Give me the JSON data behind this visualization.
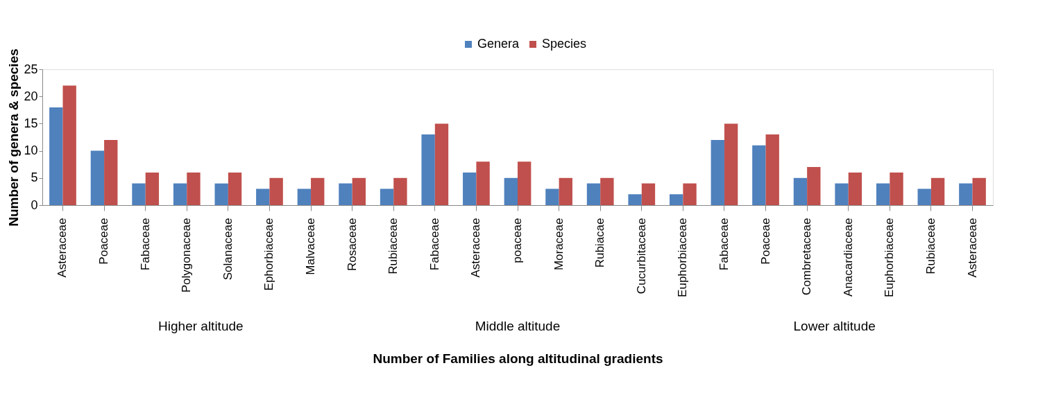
{
  "chart_data": {
    "type": "bar",
    "categories": [
      "Asteraceae",
      "Poaceae",
      "Fabaceae",
      "Polygonaceae",
      "Solanaceae",
      "Ephorbiaceae",
      "Malvaceae",
      "Rosaceae",
      "Rubiaceae",
      "Fabaceae",
      "Asteraceae",
      "poaceae",
      "Moraceae",
      "Rubiacae",
      "Cucurbitaceae",
      "Euphorbiaceae",
      "Fabaceae",
      "Poaceae",
      "Combretaceae",
      "Anacardiaceae",
      "Euphorbiaceae",
      "Rubiaceae",
      "Asteraceae"
    ],
    "series": [
      {
        "name": "Genera",
        "color": "#4f81bd",
        "values": [
          18,
          10,
          4,
          4,
          4,
          3,
          3,
          4,
          3,
          13,
          6,
          5,
          3,
          4,
          2,
          2,
          12,
          11,
          5,
          4,
          4,
          3,
          4
        ]
      },
      {
        "name": "Species",
        "color": "#c0504d",
        "values": [
          22,
          12,
          6,
          6,
          6,
          5,
          5,
          5,
          5,
          15,
          8,
          8,
          5,
          5,
          4,
          4,
          15,
          13,
          7,
          6,
          6,
          5,
          5
        ]
      }
    ],
    "xlabel": "Number  of Families along altitudinal gradients",
    "ylabel": "Number  of  genera & species",
    "ylim": [
      0,
      25
    ],
    "yticks": [
      0,
      5,
      10,
      15,
      20,
      25
    ],
    "grid": false,
    "legend": "top",
    "annotations": [
      "Higher altitude",
      "Middle altitude",
      "Lower altitude"
    ]
  }
}
